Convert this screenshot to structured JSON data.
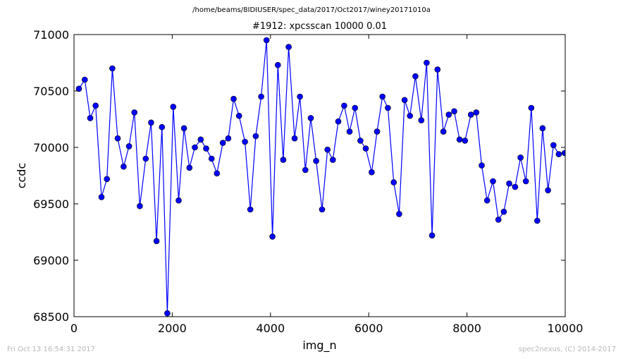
{
  "header": {
    "suptitle": "/home/beams/8IDIUSER/spec_data/2017/Oct2017/winey20171010a"
  },
  "footer": {
    "left": "Fri Oct 13 16:54:31 2017",
    "right": "spec2nexus, (C) 2014-2017"
  },
  "chart_data": {
    "type": "line",
    "title": "#1912: xpcsscan 10000 0.01",
    "xlabel": "img_n",
    "ylabel": "ccdc",
    "xlim": [
      0,
      10000
    ],
    "ylim": [
      68500,
      71000
    ],
    "xticks": [
      0,
      2000,
      4000,
      6000,
      8000,
      10000
    ],
    "yticks": [
      68500,
      69000,
      69500,
      70000,
      70500,
      71000
    ],
    "grid": false,
    "color": "#0000ff",
    "marker": "circle",
    "series": [
      {
        "x": [
          100,
          220,
          330,
          440,
          560,
          670,
          780,
          890,
          1010,
          1120,
          1230,
          1340,
          1460,
          1570,
          1680,
          1790,
          1900,
          2020,
          2130,
          2240,
          2350,
          2460,
          2580,
          2690,
          2800,
          2910,
          3030,
          3140,
          3250,
          3360,
          3480,
          3590,
          3700,
          3810,
          3920,
          4040,
          4150,
          4260,
          4370,
          4490,
          4600,
          4710,
          4820,
          4930,
          5050,
          5160,
          5270,
          5380,
          5500,
          5610,
          5720,
          5830,
          5940,
          6060,
          6170,
          6280,
          6390,
          6510,
          6620,
          6730,
          6840,
          6950,
          7070,
          7180,
          7290,
          7400,
          7520,
          7630,
          7740,
          7850,
          7960,
          8080,
          8190,
          8300,
          8410,
          8530,
          8640,
          8750,
          8860,
          8980,
          9090,
          9200,
          9310,
          9430,
          9540,
          9650,
          9760,
          9870,
          9990
        ],
        "y": [
          70520,
          70600,
          70260,
          70370,
          69560,
          69720,
          70700,
          70080,
          69830,
          70010,
          70310,
          69480,
          69900,
          70220,
          69170,
          70180,
          68530,
          70360,
          69530,
          70170,
          69820,
          70000,
          70070,
          69990,
          69900,
          69770,
          70040,
          70080,
          70430,
          70280,
          70050,
          69450,
          70100,
          70450,
          70950,
          69210,
          70730,
          69890,
          70890,
          70080,
          70450,
          69800,
          70260,
          69880,
          69450,
          69980,
          69890,
          70230,
          70370,
          70140,
          70350,
          70060,
          69990,
          69780,
          70140,
          70450,
          70350,
          69690,
          69410,
          70420,
          70280,
          70630,
          70240,
          70750,
          69220,
          70690,
          70140,
          70290,
          70320,
          70070,
          70060,
          70290,
          70310,
          69840,
          69530,
          69700,
          69360,
          69430,
          69680,
          69650,
          69910,
          69700,
          70350,
          69350,
          70170,
          69620,
          70020,
          69940,
          69950
        ]
      }
    ]
  }
}
